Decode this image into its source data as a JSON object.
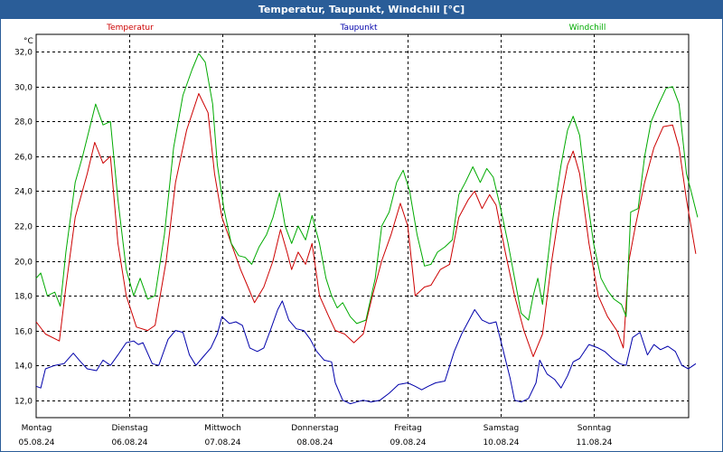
{
  "chart_data": {
    "type": "line",
    "title": "Temperatur, Taupunkt, Windchill [°C]",
    "unit_label": "°C",
    "ylim": [
      11,
      33
    ],
    "grid": true,
    "x_range": [
      0,
      7
    ],
    "y_ticks": [
      "32,0",
      "30,0",
      "28,0",
      "26,0",
      "24,0",
      "22,0",
      "20,0",
      "18,0",
      "16,0",
      "14,0",
      "12,0"
    ],
    "y_tick_values": [
      32,
      30,
      28,
      26,
      24,
      22,
      20,
      18,
      16,
      14,
      12
    ],
    "x_ticks": [
      {
        "day": "Montag",
        "date": "05.08.24",
        "pos": 0
      },
      {
        "day": "Dienstag",
        "date": "06.08.24",
        "pos": 1
      },
      {
        "day": "Mittwoch",
        "date": "07.08.24",
        "pos": 2
      },
      {
        "day": "Donnerstag",
        "date": "08.08.24",
        "pos": 3
      },
      {
        "day": "Freitag",
        "date": "09.08.24",
        "pos": 4
      },
      {
        "day": "Samstag",
        "date": "10.08.24",
        "pos": 5
      },
      {
        "day": "Sonntag",
        "date": "11.08.24",
        "pos": 6
      }
    ],
    "series": [
      {
        "name": "Temperatur",
        "color": "#cc0000",
        "points": [
          [
            0.0,
            16.5
          ],
          [
            0.1,
            15.8
          ],
          [
            0.25,
            15.4
          ],
          [
            0.32,
            18.5
          ],
          [
            0.42,
            22.5
          ],
          [
            0.55,
            25.0
          ],
          [
            0.63,
            26.8
          ],
          [
            0.72,
            25.6
          ],
          [
            0.8,
            26.0
          ],
          [
            0.88,
            21.0
          ],
          [
            0.97,
            18.0
          ],
          [
            1.08,
            16.2
          ],
          [
            1.2,
            16.0
          ],
          [
            1.28,
            16.3
          ],
          [
            1.4,
            20.0
          ],
          [
            1.5,
            24.5
          ],
          [
            1.62,
            27.5
          ],
          [
            1.75,
            29.6
          ],
          [
            1.85,
            28.5
          ],
          [
            1.92,
            25.0
          ],
          [
            2.0,
            22.5
          ],
          [
            2.1,
            21.0
          ],
          [
            2.2,
            19.5
          ],
          [
            2.28,
            18.5
          ],
          [
            2.35,
            17.6
          ],
          [
            2.45,
            18.5
          ],
          [
            2.55,
            20.0
          ],
          [
            2.63,
            21.8
          ],
          [
            2.7,
            20.5
          ],
          [
            2.75,
            19.5
          ],
          [
            2.82,
            20.5
          ],
          [
            2.9,
            19.8
          ],
          [
            2.97,
            21.0
          ],
          [
            3.05,
            18.0
          ],
          [
            3.15,
            16.8
          ],
          [
            3.22,
            16.0
          ],
          [
            3.32,
            15.8
          ],
          [
            3.42,
            15.3
          ],
          [
            3.52,
            15.8
          ],
          [
            3.62,
            18.0
          ],
          [
            3.72,
            20.0
          ],
          [
            3.82,
            21.5
          ],
          [
            3.92,
            23.3
          ],
          [
            4.0,
            22.0
          ],
          [
            4.08,
            18.0
          ],
          [
            4.18,
            18.5
          ],
          [
            4.25,
            18.6
          ],
          [
            4.35,
            19.5
          ],
          [
            4.45,
            19.8
          ],
          [
            4.55,
            22.5
          ],
          [
            4.65,
            23.5
          ],
          [
            4.72,
            24.0
          ],
          [
            4.8,
            23.0
          ],
          [
            4.88,
            23.8
          ],
          [
            4.95,
            23.2
          ],
          [
            5.05,
            20.5
          ],
          [
            5.15,
            18.0
          ],
          [
            5.25,
            16.0
          ],
          [
            5.35,
            14.5
          ],
          [
            5.45,
            15.8
          ],
          [
            5.55,
            20.0
          ],
          [
            5.65,
            23.5
          ],
          [
            5.72,
            25.5
          ],
          [
            5.78,
            26.3
          ],
          [
            5.85,
            25.0
          ],
          [
            5.95,
            21.0
          ],
          [
            6.05,
            18.0
          ],
          [
            6.15,
            16.8
          ],
          [
            6.25,
            16.0
          ],
          [
            6.32,
            15.0
          ],
          [
            6.38,
            20.0
          ],
          [
            6.45,
            22.0
          ],
          [
            6.55,
            24.5
          ],
          [
            6.65,
            26.5
          ],
          [
            6.75,
            27.7
          ],
          [
            6.85,
            27.8
          ],
          [
            6.92,
            26.5
          ],
          [
            7.0,
            23.5
          ],
          [
            7.1,
            20.4
          ]
        ]
      },
      {
        "name": "Taupunkt",
        "color": "#0000aa",
        "points": [
          [
            0.0,
            12.8
          ],
          [
            0.05,
            12.7
          ],
          [
            0.1,
            13.8
          ],
          [
            0.2,
            14.0
          ],
          [
            0.3,
            14.1
          ],
          [
            0.4,
            14.7
          ],
          [
            0.48,
            14.2
          ],
          [
            0.55,
            13.8
          ],
          [
            0.65,
            13.7
          ],
          [
            0.72,
            14.3
          ],
          [
            0.8,
            14.0
          ],
          [
            0.88,
            14.6
          ],
          [
            0.97,
            15.3
          ],
          [
            1.05,
            15.4
          ],
          [
            1.1,
            15.2
          ],
          [
            1.15,
            15.3
          ],
          [
            1.25,
            14.1
          ],
          [
            1.32,
            14.0
          ],
          [
            1.42,
            15.5
          ],
          [
            1.5,
            16.0
          ],
          [
            1.58,
            15.9
          ],
          [
            1.65,
            14.6
          ],
          [
            1.72,
            14.0
          ],
          [
            1.8,
            14.5
          ],
          [
            1.88,
            15.0
          ],
          [
            1.95,
            15.8
          ],
          [
            2.0,
            16.8
          ],
          [
            2.08,
            16.4
          ],
          [
            2.15,
            16.5
          ],
          [
            2.22,
            16.3
          ],
          [
            2.3,
            15.0
          ],
          [
            2.38,
            14.8
          ],
          [
            2.45,
            15.0
          ],
          [
            2.52,
            16.0
          ],
          [
            2.6,
            17.2
          ],
          [
            2.65,
            17.7
          ],
          [
            2.72,
            16.6
          ],
          [
            2.8,
            16.1
          ],
          [
            2.88,
            16.0
          ],
          [
            2.95,
            15.5
          ],
          [
            3.02,
            14.8
          ],
          [
            3.1,
            14.3
          ],
          [
            3.18,
            14.2
          ],
          [
            3.22,
            13.0
          ],
          [
            3.3,
            12.0
          ],
          [
            3.38,
            11.8
          ],
          [
            3.45,
            11.9
          ],
          [
            3.52,
            12.0
          ],
          [
            3.6,
            11.9
          ],
          [
            3.7,
            12.0
          ],
          [
            3.8,
            12.4
          ],
          [
            3.9,
            12.9
          ],
          [
            4.0,
            13.0
          ],
          [
            4.08,
            12.8
          ],
          [
            4.15,
            12.6
          ],
          [
            4.22,
            12.8
          ],
          [
            4.3,
            13.0
          ],
          [
            4.4,
            13.1
          ],
          [
            4.5,
            14.8
          ],
          [
            4.58,
            15.8
          ],
          [
            4.65,
            16.5
          ],
          [
            4.72,
            17.2
          ],
          [
            4.8,
            16.6
          ],
          [
            4.88,
            16.4
          ],
          [
            4.95,
            16.5
          ],
          [
            5.02,
            15.0
          ],
          [
            5.1,
            13.3
          ],
          [
            5.15,
            12.0
          ],
          [
            5.22,
            11.9
          ],
          [
            5.3,
            12.1
          ],
          [
            5.38,
            13.0
          ],
          [
            5.42,
            14.3
          ],
          [
            5.5,
            13.5
          ],
          [
            5.58,
            13.2
          ],
          [
            5.65,
            12.7
          ],
          [
            5.72,
            13.4
          ],
          [
            5.78,
            14.2
          ],
          [
            5.85,
            14.4
          ],
          [
            5.95,
            15.2
          ],
          [
            6.05,
            15.0
          ],
          [
            6.12,
            14.8
          ],
          [
            6.2,
            14.4
          ],
          [
            6.28,
            14.1
          ],
          [
            6.35,
            14.0
          ],
          [
            6.42,
            15.6
          ],
          [
            6.5,
            15.9
          ],
          [
            6.58,
            14.6
          ],
          [
            6.65,
            15.2
          ],
          [
            6.72,
            14.9
          ],
          [
            6.8,
            15.1
          ],
          [
            6.88,
            14.8
          ],
          [
            6.95,
            14.0
          ],
          [
            7.02,
            13.8
          ],
          [
            7.1,
            14.1
          ]
        ]
      },
      {
        "name": "Windchill",
        "color": "#00aa00",
        "points": [
          [
            0.0,
            19.0
          ],
          [
            0.05,
            19.3
          ],
          [
            0.12,
            18.0
          ],
          [
            0.2,
            18.2
          ],
          [
            0.26,
            17.4
          ],
          [
            0.32,
            20.5
          ],
          [
            0.42,
            24.5
          ],
          [
            0.5,
            26.0
          ],
          [
            0.57,
            27.5
          ],
          [
            0.64,
            29.0
          ],
          [
            0.72,
            27.8
          ],
          [
            0.8,
            28.0
          ],
          [
            0.88,
            23.5
          ],
          [
            0.97,
            19.5
          ],
          [
            1.05,
            18.0
          ],
          [
            1.12,
            19.0
          ],
          [
            1.2,
            17.8
          ],
          [
            1.28,
            18.0
          ],
          [
            1.38,
            21.5
          ],
          [
            1.48,
            26.5
          ],
          [
            1.58,
            29.5
          ],
          [
            1.68,
            31.0
          ],
          [
            1.75,
            31.9
          ],
          [
            1.82,
            31.4
          ],
          [
            1.9,
            29.0
          ],
          [
            1.95,
            25.5
          ],
          [
            2.02,
            23.0
          ],
          [
            2.1,
            21.0
          ],
          [
            2.18,
            20.3
          ],
          [
            2.25,
            20.2
          ],
          [
            2.32,
            19.8
          ],
          [
            2.4,
            20.8
          ],
          [
            2.48,
            21.5
          ],
          [
            2.55,
            22.5
          ],
          [
            2.62,
            23.9
          ],
          [
            2.68,
            22.0
          ],
          [
            2.75,
            21.0
          ],
          [
            2.82,
            22.0
          ],
          [
            2.9,
            21.2
          ],
          [
            2.97,
            22.6
          ],
          [
            3.05,
            21.0
          ],
          [
            3.12,
            19.0
          ],
          [
            3.18,
            18.0
          ],
          [
            3.24,
            17.3
          ],
          [
            3.3,
            17.6
          ],
          [
            3.38,
            16.8
          ],
          [
            3.45,
            16.4
          ],
          [
            3.55,
            16.6
          ],
          [
            3.65,
            19.0
          ],
          [
            3.72,
            22.0
          ],
          [
            3.8,
            22.8
          ],
          [
            3.88,
            24.5
          ],
          [
            3.95,
            25.2
          ],
          [
            4.02,
            24.0
          ],
          [
            4.1,
            21.5
          ],
          [
            4.18,
            19.7
          ],
          [
            4.25,
            19.8
          ],
          [
            4.32,
            20.5
          ],
          [
            4.4,
            20.8
          ],
          [
            4.48,
            21.2
          ],
          [
            4.55,
            23.8
          ],
          [
            4.62,
            24.5
          ],
          [
            4.7,
            25.4
          ],
          [
            4.78,
            24.5
          ],
          [
            4.85,
            25.3
          ],
          [
            4.92,
            24.8
          ],
          [
            5.0,
            23.0
          ],
          [
            5.08,
            21.0
          ],
          [
            5.15,
            19.0
          ],
          [
            5.22,
            17.0
          ],
          [
            5.3,
            16.6
          ],
          [
            5.35,
            18.0
          ],
          [
            5.4,
            19.0
          ],
          [
            5.45,
            17.5
          ],
          [
            5.55,
            22.0
          ],
          [
            5.65,
            25.5
          ],
          [
            5.72,
            27.5
          ],
          [
            5.78,
            28.3
          ],
          [
            5.85,
            27.2
          ],
          [
            5.92,
            24.0
          ],
          [
            6.0,
            21.0
          ],
          [
            6.08,
            19.0
          ],
          [
            6.15,
            18.3
          ],
          [
            6.22,
            17.8
          ],
          [
            6.3,
            17.5
          ],
          [
            6.35,
            16.8
          ],
          [
            6.4,
            22.8
          ],
          [
            6.48,
            23.0
          ],
          [
            6.55,
            26.0
          ],
          [
            6.62,
            28.0
          ],
          [
            6.7,
            29.0
          ],
          [
            6.78,
            29.9
          ],
          [
            6.85,
            30.0
          ],
          [
            6.92,
            29.0
          ],
          [
            7.0,
            25.0
          ],
          [
            7.05,
            24.0
          ],
          [
            7.12,
            22.5
          ]
        ]
      }
    ]
  }
}
